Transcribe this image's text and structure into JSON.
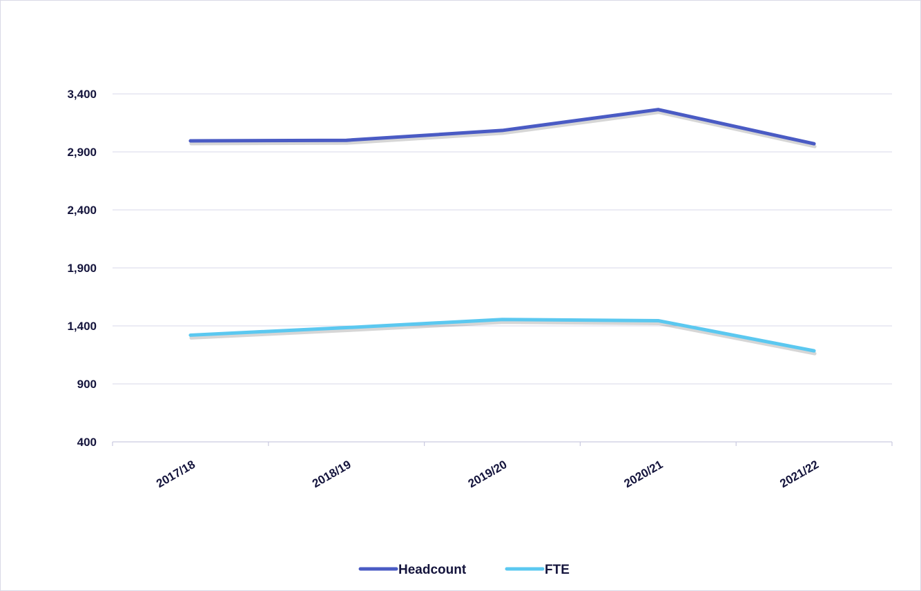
{
  "chart_data": {
    "type": "line",
    "categories": [
      "2017/18",
      "2018/19",
      "2019/20",
      "2020/21",
      "2021/22"
    ],
    "series": [
      {
        "name": "Headcount",
        "color": "#4a5bc4",
        "values": [
          2995,
          3000,
          3085,
          3265,
          2970
        ]
      },
      {
        "name": "FTE",
        "color": "#5bc8f0",
        "values": [
          1320,
          1385,
          1455,
          1445,
          1185
        ]
      }
    ],
    "yticks": [
      400,
      900,
      1400,
      1900,
      2400,
      2900,
      3400
    ],
    "ytick_labels": [
      "400",
      "900",
      "1,400",
      "1,900",
      "2,400",
      "2,900",
      "3,400"
    ],
    "ylim": [
      400,
      3400
    ],
    "grid": true,
    "legend_position": "bottom-center",
    "title": "",
    "xlabel": "",
    "ylabel": ""
  }
}
